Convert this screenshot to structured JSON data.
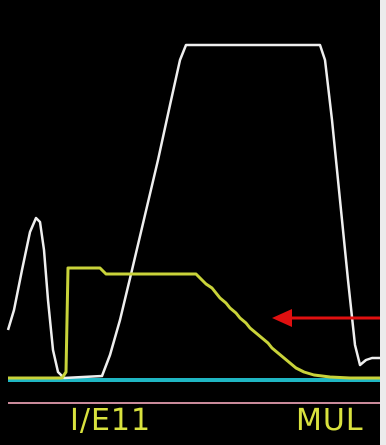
{
  "monitor": {
    "mode_label": "I/E11",
    "type_label": "MUL"
  },
  "colors": {
    "background": "#000000",
    "white_trace": "#efefef",
    "yellow_trace": "#c9d33a",
    "cyan_baseline": "#1fb6c3",
    "separator_line": "#c98a9a",
    "arrow": "#e01010",
    "label_text": "#d9e23e"
  }
}
